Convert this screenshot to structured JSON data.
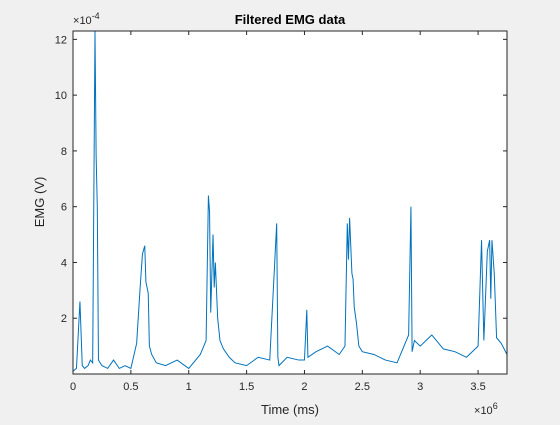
{
  "chart_data": {
    "type": "line",
    "title": "Filtered EMG data",
    "xlabel": "Time (ms)",
    "ylabel": "EMG (V)",
    "x_exponent_label": "10",
    "x_exponent": "6",
    "y_exponent_label": "10",
    "y_exponent": "-4",
    "xlim": [
      0,
      3.75
    ],
    "ylim": [
      0,
      12.3
    ],
    "x_unit_scale": 1000000,
    "y_unit_scale": 0.0001,
    "xticks": [
      0,
      0.5,
      1,
      1.5,
      2,
      2.5,
      3,
      3.5
    ],
    "xtick_labels": [
      "0",
      "0.5",
      "1",
      "1.5",
      "2",
      "2.5",
      "3",
      "3.5"
    ],
    "yticks": [
      2,
      4,
      6,
      8,
      10,
      12
    ],
    "ytick_labels": [
      "2",
      "4",
      "6",
      "8",
      "10",
      "12"
    ],
    "grid": false,
    "line_color": "#0072bd",
    "series": [
      {
        "x": [
          0.0,
          0.03,
          0.06,
          0.08,
          0.1,
          0.13,
          0.15,
          0.17,
          0.19,
          0.2,
          0.21,
          0.22,
          0.25,
          0.3,
          0.35,
          0.4,
          0.45,
          0.5,
          0.55,
          0.58,
          0.6,
          0.62,
          0.63,
          0.65,
          0.66,
          0.68,
          0.72,
          0.8,
          0.9,
          1.0,
          1.1,
          1.15,
          1.17,
          1.18,
          1.19,
          1.21,
          1.22,
          1.23,
          1.25,
          1.27,
          1.3,
          1.35,
          1.4,
          1.5,
          1.6,
          1.7,
          1.76,
          1.77,
          1.78,
          1.85,
          1.95,
          2.0,
          2.02,
          2.03,
          2.1,
          2.2,
          2.3,
          2.35,
          2.37,
          2.38,
          2.39,
          2.41,
          2.42,
          2.43,
          2.45,
          2.47,
          2.5,
          2.6,
          2.7,
          2.8,
          2.9,
          2.92,
          2.93,
          2.95,
          3.0,
          3.1,
          3.2,
          3.3,
          3.4,
          3.5,
          3.53,
          3.55,
          3.58,
          3.6,
          3.61,
          3.62,
          3.64,
          3.66,
          3.7,
          3.75
        ],
        "y": [
          0.1,
          0.2,
          2.6,
          0.3,
          0.2,
          0.3,
          0.5,
          0.4,
          12.3,
          7.8,
          6.0,
          0.5,
          0.3,
          0.2,
          0.5,
          0.2,
          0.3,
          0.2,
          1.1,
          3.1,
          4.3,
          4.6,
          3.3,
          2.9,
          1.0,
          0.7,
          0.4,
          0.3,
          0.5,
          0.2,
          0.7,
          1.2,
          6.4,
          5.8,
          2.2,
          5.0,
          3.1,
          4.0,
          2.0,
          1.2,
          0.9,
          0.6,
          0.4,
          0.3,
          0.6,
          0.5,
          5.4,
          0.6,
          0.3,
          0.6,
          0.5,
          0.5,
          2.3,
          0.6,
          0.8,
          1.0,
          0.7,
          1.0,
          5.4,
          4.1,
          5.6,
          3.6,
          3.4,
          2.4,
          1.8,
          1.0,
          0.8,
          0.7,
          0.5,
          0.4,
          1.4,
          6.0,
          0.8,
          1.2,
          1.0,
          1.4,
          0.9,
          0.8,
          0.6,
          1.0,
          4.8,
          1.2,
          4.4,
          4.8,
          2.7,
          4.8,
          3.6,
          1.3,
          1.1,
          0.7
        ]
      }
    ]
  }
}
